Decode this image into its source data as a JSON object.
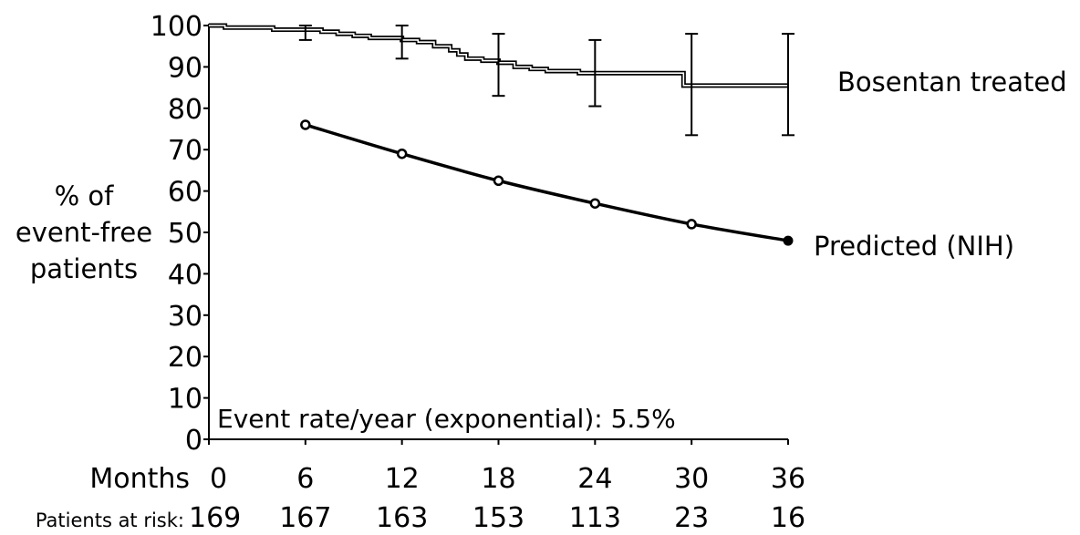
{
  "chart_data": {
    "type": "line",
    "ylabel": [
      "% of",
      "event-free",
      "patients"
    ],
    "xlabel": "Months",
    "x_ticks": [
      0,
      6,
      12,
      18,
      24,
      30,
      36
    ],
    "y_ticks": [
      0,
      10,
      20,
      30,
      40,
      50,
      60,
      70,
      80,
      90,
      100
    ],
    "xlim": [
      0,
      36
    ],
    "ylim": [
      0,
      100
    ],
    "grid": false,
    "annotation": "Event rate/year (exponential):  5.5%",
    "risk_table": {
      "label": "Patients at risk:",
      "values": [
        169,
        167,
        163,
        153,
        113,
        23,
        16
      ]
    },
    "series": [
      {
        "name": "Bosentan treated",
        "style": "step",
        "color": "#000000",
        "points": [
          [
            0,
            100
          ],
          [
            1,
            99.5
          ],
          [
            3,
            99.5
          ],
          [
            4,
            99
          ],
          [
            5,
            99
          ],
          [
            6,
            99
          ],
          [
            7,
            98.5
          ],
          [
            8,
            98
          ],
          [
            9,
            97.5
          ],
          [
            10,
            97
          ],
          [
            11,
            97
          ],
          [
            12,
            96.5
          ],
          [
            13,
            96
          ],
          [
            14,
            95
          ],
          [
            15,
            94
          ],
          [
            15.5,
            93
          ],
          [
            16,
            92
          ],
          [
            17,
            91.5
          ],
          [
            18,
            91
          ],
          [
            19,
            90
          ],
          [
            20,
            89.5
          ],
          [
            21,
            89
          ],
          [
            22,
            89
          ],
          [
            23,
            88.5
          ],
          [
            24,
            88.5
          ],
          [
            26,
            88.5
          ],
          [
            28,
            88.5
          ],
          [
            29,
            88.5
          ],
          [
            29.5,
            85.5
          ],
          [
            30,
            85.5
          ],
          [
            36,
            85.5
          ]
        ],
        "error_bars": [
          {
            "x": 6,
            "y": 98.5,
            "low": 96.5,
            "high": 100
          },
          {
            "x": 12,
            "y": 96,
            "low": 92,
            "high": 100
          },
          {
            "x": 18,
            "y": 90.5,
            "low": 83,
            "high": 98
          },
          {
            "x": 24,
            "y": 88.5,
            "low": 80.5,
            "high": 96.5
          },
          {
            "x": 30,
            "y": 85.5,
            "low": 73.5,
            "high": 98
          },
          {
            "x": 36,
            "y": 85.5,
            "low": 73.5,
            "high": 98
          }
        ]
      },
      {
        "name": "Predicted (NIH)",
        "style": "line-markers",
        "color": "#000000",
        "points": [
          [
            6,
            76
          ],
          [
            12,
            69
          ],
          [
            18,
            62.5
          ],
          [
            24,
            57
          ],
          [
            30,
            52
          ],
          [
            36,
            48
          ]
        ]
      }
    ]
  }
}
